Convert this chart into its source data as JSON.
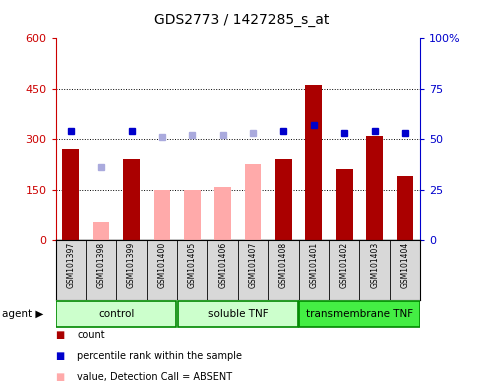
{
  "title": "GDS2773 / 1427285_s_at",
  "samples": [
    "GSM101397",
    "GSM101398",
    "GSM101399",
    "GSM101400",
    "GSM101405",
    "GSM101406",
    "GSM101407",
    "GSM101408",
    "GSM101401",
    "GSM101402",
    "GSM101403",
    "GSM101404"
  ],
  "count_present": [
    270,
    null,
    240,
    null,
    null,
    null,
    null,
    240,
    460,
    210,
    310,
    190
  ],
  "count_absent": [
    null,
    55,
    null,
    null,
    null,
    null,
    null,
    null,
    null,
    null,
    null,
    null
  ],
  "value_absent": [
    null,
    null,
    null,
    148,
    150,
    158,
    225,
    null,
    null,
    null,
    null,
    null
  ],
  "rank_present": [
    54,
    null,
    54,
    null,
    null,
    null,
    null,
    54,
    57,
    53,
    54,
    53
  ],
  "rank_absent": [
    null,
    36,
    null,
    51,
    52,
    52,
    53,
    null,
    null,
    null,
    null,
    null
  ],
  "ylim_left": [
    0,
    600
  ],
  "ylim_right": [
    0,
    100
  ],
  "yticks_left": [
    0,
    150,
    300,
    450,
    600
  ],
  "yticks_right": [
    0,
    25,
    50,
    75,
    100
  ],
  "ytick_labels_left": [
    "0",
    "150",
    "300",
    "450",
    "600"
  ],
  "ytick_labels_right": [
    "0",
    "25",
    "50",
    "75",
    "100%"
  ],
  "left_axis_color": "#cc0000",
  "right_axis_color": "#0000cc",
  "bar_color_present": "#aa0000",
  "bar_color_absent": "#ffaaaa",
  "dot_color_present": "#0000cc",
  "dot_color_absent": "#aaaadd",
  "bg_color": "#d8d8d8",
  "groups": [
    {
      "label": "control",
      "start": 0,
      "end": 3,
      "color": "#ccffcc",
      "border": "#008800"
    },
    {
      "label": "soluble TNF",
      "start": 4,
      "end": 7,
      "color": "#ccffcc",
      "border": "#008800"
    },
    {
      "label": "transmembrane TNF",
      "start": 8,
      "end": 11,
      "color": "#44ee44",
      "border": "#008800"
    }
  ]
}
